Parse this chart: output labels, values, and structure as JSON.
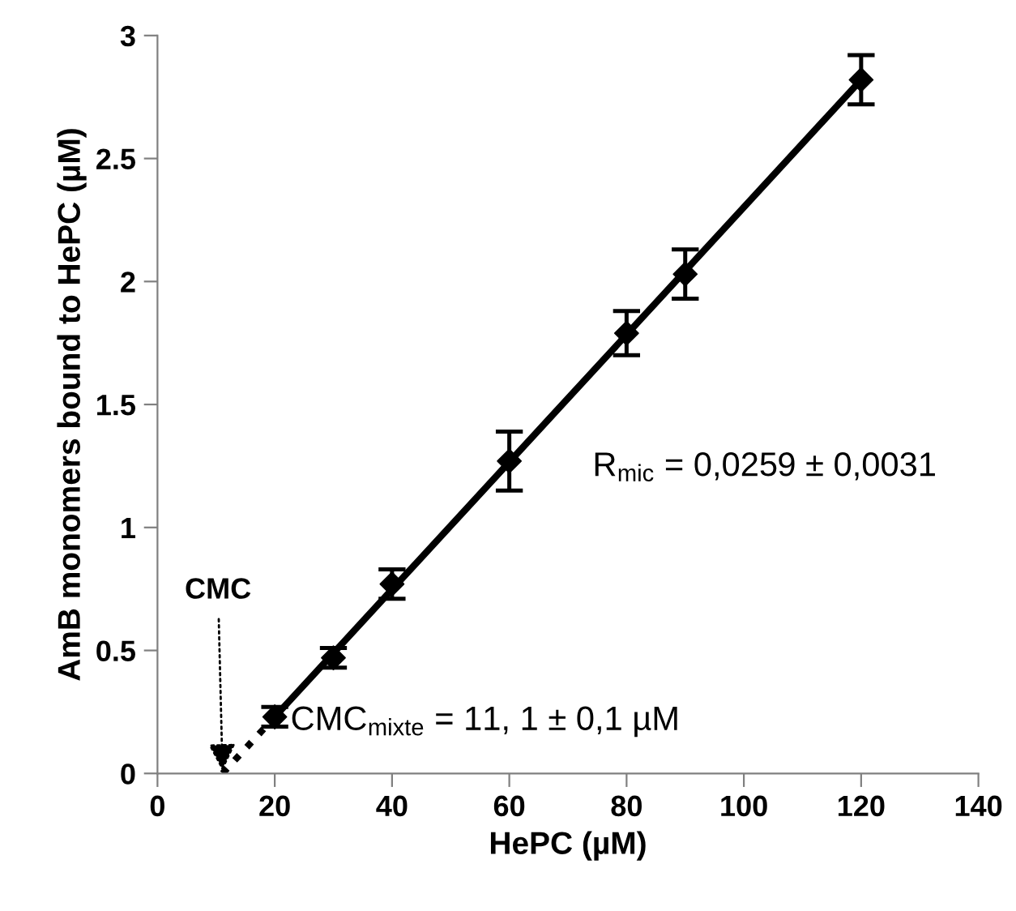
{
  "chart_data": {
    "type": "scatter",
    "xlabel": "HePC (µM)",
    "ylabel": "AmB monomers bound to HePC (µM)",
    "x": [
      20,
      30,
      40,
      60,
      80,
      90,
      120
    ],
    "series": [
      {
        "color": "#000000",
        "values": [
          0.23,
          0.47,
          0.77,
          1.27,
          1.79,
          2.03,
          2.82
        ],
        "errors": [
          0.04,
          0.04,
          0.06,
          0.12,
          0.09,
          0.1,
          0.1
        ],
        "marker": "diamond"
      },
      {
        "type": "line",
        "color": "#000000",
        "x": [
          20,
          120
        ],
        "values": [
          0.23,
          2.82
        ],
        "line_style": "solid",
        "marker": "none"
      },
      {
        "type": "line",
        "color": "#000000",
        "x": [
          11.1,
          20
        ],
        "values": [
          0,
          0.23
        ],
        "line_style": "dotted",
        "marker": "none"
      }
    ],
    "annotations": [
      "R$_{mic}$ = 0,0259 ± 0,0031",
      {
        "text": "CMC$_{mixte}$ = 11, 1 ± 0,1 µM",
        "x": 20,
        "y": 0.23
      },
      {
        "text": "CMC",
        "x": 11.1,
        "y": 0
      }
    ],
    "xlim": [
      0,
      140
    ],
    "xticks": [
      0,
      20,
      40,
      60,
      80,
      100,
      120,
      140
    ],
    "ylim": [
      0,
      3
    ],
    "yticks": [
      0,
      0.5,
      1,
      1.5,
      2,
      2.5,
      3
    ],
    "grid": false,
    "legend": false
  }
}
